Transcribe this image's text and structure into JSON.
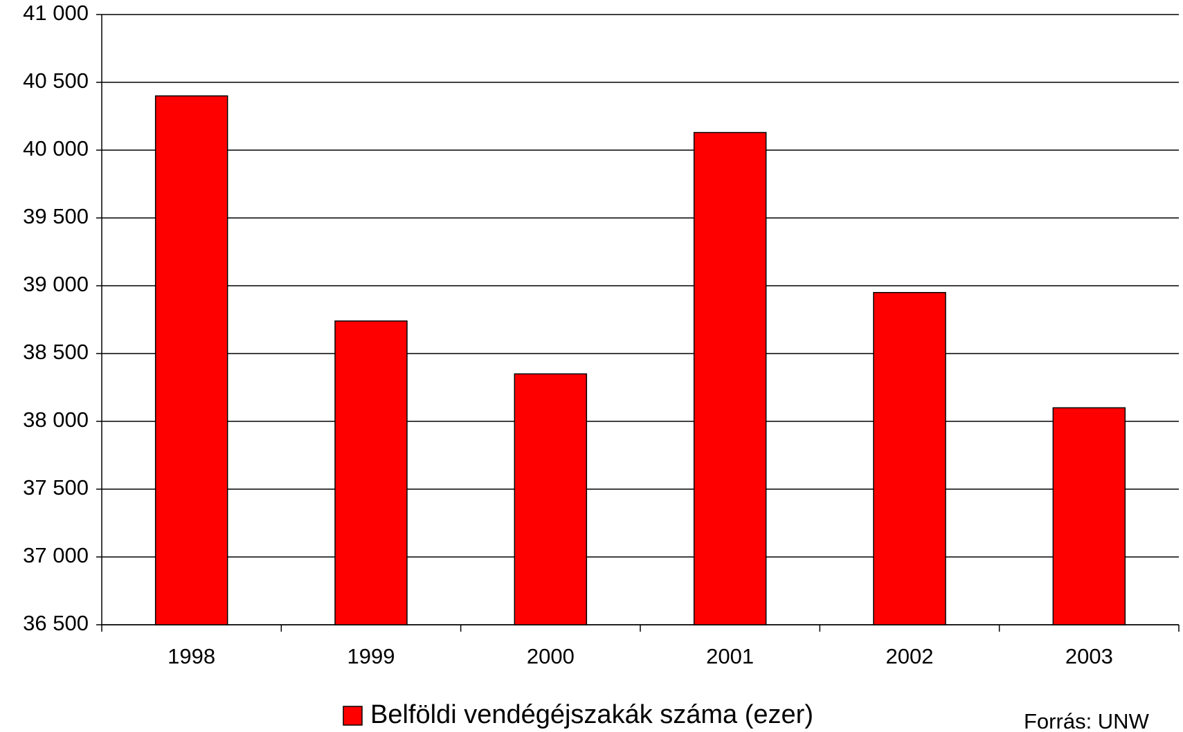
{
  "chart_data": {
    "type": "bar",
    "categories": [
      "1998",
      "1999",
      "2000",
      "2001",
      "2002",
      "2003"
    ],
    "series": [
      {
        "name": "Belföldi vendégéjszakák száma (ezer)",
        "color": "#ff0000",
        "values": [
          40400,
          38740,
          38350,
          40130,
          38950,
          38100
        ]
      }
    ],
    "ylim": [
      36500,
      41000
    ],
    "yticks": [
      {
        "value": 36500,
        "label": "36 500"
      },
      {
        "value": 37000,
        "label": "37 000"
      },
      {
        "value": 37500,
        "label": "37 500"
      },
      {
        "value": 38000,
        "label": "38 000"
      },
      {
        "value": 38500,
        "label": "38 500"
      },
      {
        "value": 39000,
        "label": "39 000"
      },
      {
        "value": 39500,
        "label": "39 500"
      },
      {
        "value": 40000,
        "label": "40 000"
      },
      {
        "value": 40500,
        "label": "40 500"
      },
      {
        "value": 41000,
        "label": "41 000"
      }
    ],
    "grid": true,
    "legend": "bottom",
    "source": "Forrás: UNW"
  }
}
